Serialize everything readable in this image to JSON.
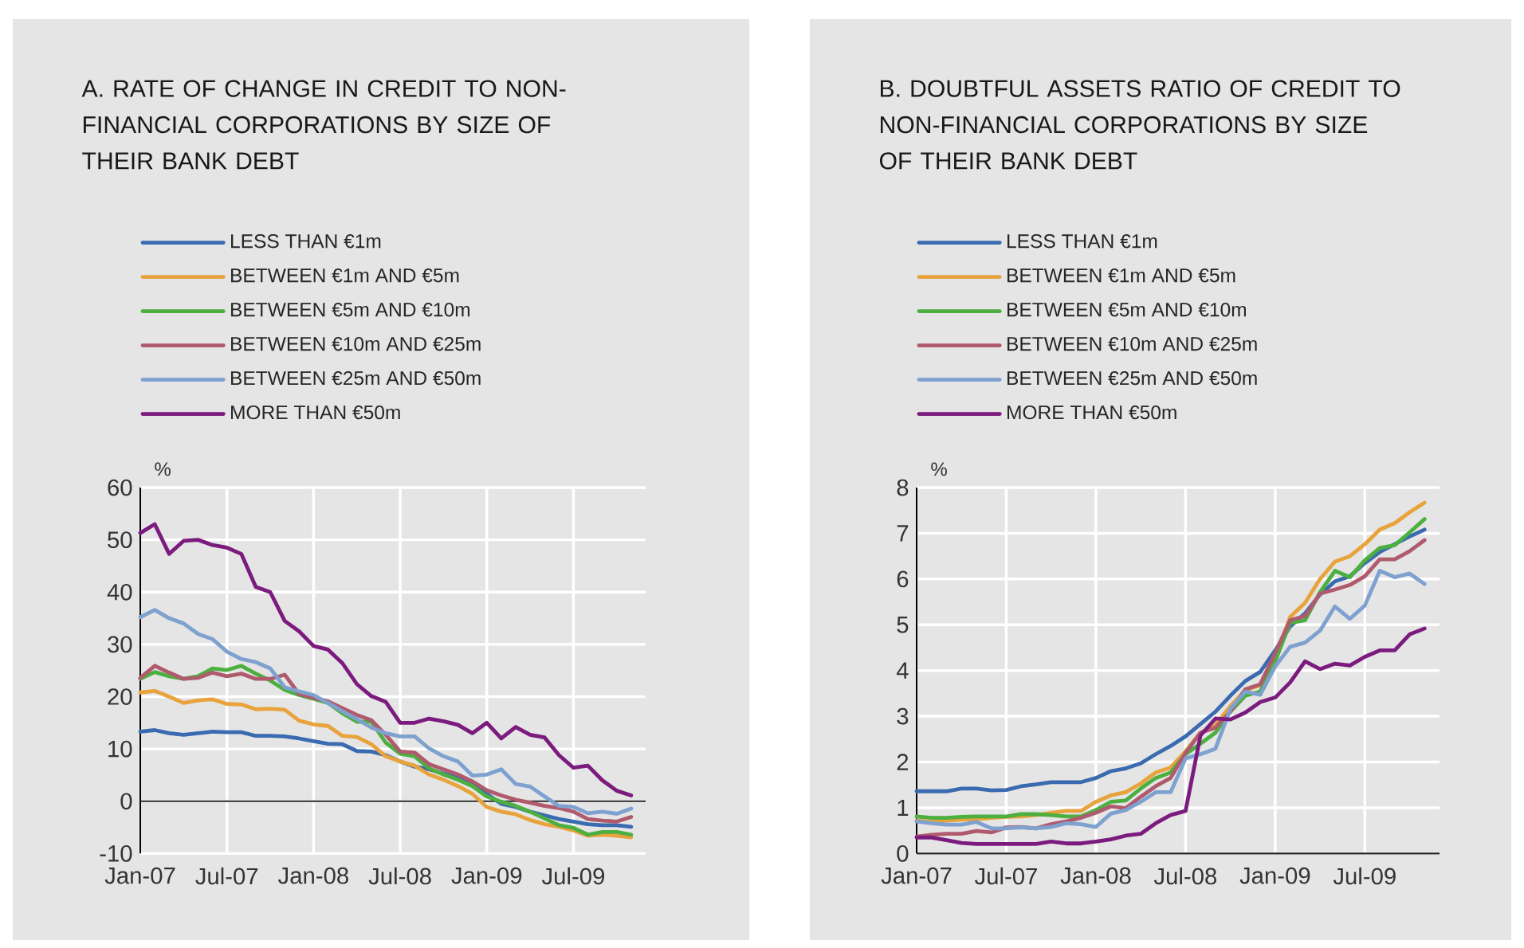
{
  "chart_data": [
    {
      "type": "line",
      "title": "A. RATE OF CHANGE IN CREDIT TO NON-FINANCIAL CORPORATIONS BY SIZE OF THEIR BANK DEBT",
      "ylabel": "%",
      "x": [
        "2007-01",
        "2007-02",
        "2007-03",
        "2007-04",
        "2007-05",
        "2007-06",
        "2007-07",
        "2007-08",
        "2007-09",
        "2007-10",
        "2007-11",
        "2007-12",
        "2008-01",
        "2008-02",
        "2008-03",
        "2008-04",
        "2008-05",
        "2008-06",
        "2008-07",
        "2008-08",
        "2008-09",
        "2008-10",
        "2008-11",
        "2008-12",
        "2009-01",
        "2009-02",
        "2009-03",
        "2009-04",
        "2009-05",
        "2009-06",
        "2009-07",
        "2009-08",
        "2009-09",
        "2009-10",
        "2009-11"
      ],
      "xlim": [
        "2007-01",
        "2009-12"
      ],
      "xticks": [
        {
          "value": "2007-01",
          "label": "Jan-07"
        },
        {
          "value": "2007-07",
          "label": "Jul-07"
        },
        {
          "value": "2008-01",
          "label": "Jan-08"
        },
        {
          "value": "2008-07",
          "label": "Jul-08"
        },
        {
          "value": "2009-01",
          "label": "Jan-09"
        },
        {
          "value": "2009-07",
          "label": "Jul-09"
        }
      ],
      "ylim": [
        -10,
        60
      ],
      "yticks": [
        -10,
        0,
        10,
        20,
        30,
        40,
        50,
        60
      ],
      "grid": true,
      "legend": "top left",
      "series": [
        {
          "name": "LESS THAN €1m",
          "color": "#3a6bb0",
          "values": [
            13.3,
            13.6,
            13,
            12.7,
            13,
            13.3,
            13.2,
            13.2,
            12.5,
            12.5,
            12.4,
            12,
            11.5,
            11,
            10.9,
            9.6,
            9.5,
            8.8,
            7.6,
            6.6,
            6.1,
            5.3,
            4.4,
            3.5,
            1.4,
            -0.5,
            -1.1,
            -2,
            -2.7,
            -3.4,
            -3.9,
            -4.4,
            -4.6,
            -4.6,
            -4.9
          ]
        },
        {
          "name": "BETWEEN €1m AND €5m",
          "color": "#e8a33c",
          "values": [
            20.8,
            21.1,
            20,
            18.8,
            19.3,
            19.5,
            18.6,
            18.5,
            17.6,
            17.7,
            17.5,
            15.4,
            14.7,
            14.4,
            12.5,
            12.3,
            10.9,
            8.6,
            7.6,
            6.8,
            5.1,
            4.1,
            2.9,
            1.4,
            -1.1,
            -2,
            -2.5,
            -3.6,
            -4.4,
            -4.9,
            -5.6,
            -6.6,
            -6.4,
            -6.6,
            -6.9
          ]
        },
        {
          "name": "BETWEEN €5m AND €10m",
          "color": "#4caf3f",
          "values": [
            23.4,
            24.7,
            23.9,
            23.4,
            23.9,
            25.4,
            25.1,
            25.9,
            24.4,
            23.1,
            21.3,
            20.3,
            19.6,
            18.8,
            16.8,
            15.2,
            15.2,
            11.2,
            9.1,
            8.6,
            6.3,
            5.1,
            4.1,
            2.9,
            0.9,
            -0.1,
            -0.9,
            -2,
            -3.3,
            -4.6,
            -5.1,
            -6.4,
            -5.9,
            -5.9,
            -6.4
          ]
        },
        {
          "name": "BETWEEN €10m AND €25m",
          "color": "#b05a6e",
          "values": [
            23.6,
            25.9,
            24.6,
            23.4,
            23.6,
            24.6,
            23.9,
            24.4,
            23.4,
            23.4,
            24.2,
            20.5,
            19.8,
            19.1,
            17.8,
            16.5,
            15.5,
            12.7,
            9.5,
            9.3,
            7.1,
            6.1,
            5.1,
            3.8,
            2.1,
            1.1,
            0.3,
            -0.3,
            -0.9,
            -1.3,
            -2,
            -3.4,
            -3.7,
            -3.9,
            -3
          ]
        },
        {
          "name": "BETWEEN €25m AND €50m",
          "color": "#7ea1d0",
          "values": [
            35.2,
            36.6,
            35,
            34,
            32,
            31,
            28.6,
            27.2,
            26.6,
            25.4,
            21.8,
            21,
            20.3,
            18.8,
            17.2,
            15.7,
            14.1,
            13,
            12.4,
            12.4,
            10.1,
            8.6,
            7.6,
            4.9,
            5.1,
            6.1,
            3.3,
            2.8,
            0.9,
            -0.9,
            -1.1,
            -2.3,
            -2,
            -2.4,
            -1.4
          ]
        },
        {
          "name": "MORE THAN €50m",
          "color": "#7b1b7e",
          "values": [
            51.3,
            53,
            47.3,
            49.8,
            50,
            49,
            48.5,
            47.3,
            41,
            40,
            34.5,
            32.5,
            29.7,
            29,
            26.4,
            22.4,
            20.1,
            19,
            15,
            15,
            15.8,
            15.3,
            14.6,
            13,
            15,
            12,
            14.2,
            12.7,
            12.2,
            8.8,
            6.4,
            6.8,
            4,
            2,
            1.1
          ]
        }
      ]
    },
    {
      "type": "line",
      "title": "B. DOUBTFUL ASSETS RATIO OF CREDIT TO NON-FINANCIAL CORPORATIONS BY SIZE OF THEIR BANK DEBT",
      "ylabel": "%",
      "x": [
        "2007-01",
        "2007-02",
        "2007-03",
        "2007-04",
        "2007-05",
        "2007-06",
        "2007-07",
        "2007-08",
        "2007-09",
        "2007-10",
        "2007-11",
        "2007-12",
        "2008-01",
        "2008-02",
        "2008-03",
        "2008-04",
        "2008-05",
        "2008-06",
        "2008-07",
        "2008-08",
        "2008-09",
        "2008-10",
        "2008-11",
        "2008-12",
        "2009-01",
        "2009-02",
        "2009-03",
        "2009-04",
        "2009-05",
        "2009-06",
        "2009-07",
        "2009-08",
        "2009-09",
        "2009-10",
        "2009-11"
      ],
      "xlim": [
        "2007-01",
        "2009-12"
      ],
      "xticks": [
        {
          "value": "2007-01",
          "label": "Jan-07"
        },
        {
          "value": "2007-07",
          "label": "Jul-07"
        },
        {
          "value": "2008-01",
          "label": "Jan-08"
        },
        {
          "value": "2008-07",
          "label": "Jul-08"
        },
        {
          "value": "2009-01",
          "label": "Jan-09"
        },
        {
          "value": "2009-07",
          "label": "Jul-09"
        }
      ],
      "ylim": [
        0,
        8
      ],
      "yticks": [
        0,
        1,
        2,
        3,
        4,
        5,
        6,
        7,
        8
      ],
      "grid": true,
      "legend": "top left",
      "series": [
        {
          "name": "LESS THAN €1m",
          "color": "#3a6bb0",
          "values": [
            1.36,
            1.36,
            1.36,
            1.42,
            1.42,
            1.38,
            1.39,
            1.47,
            1.51,
            1.56,
            1.56,
            1.56,
            1.65,
            1.8,
            1.86,
            1.97,
            2.17,
            2.35,
            2.56,
            2.83,
            3.1,
            3.45,
            3.77,
            3.97,
            4.44,
            4.96,
            5.25,
            5.66,
            5.95,
            6.06,
            6.35,
            6.59,
            6.76,
            6.93,
            7.08
          ]
        },
        {
          "name": "BETWEEN €1m AND €5m",
          "color": "#e8a33c",
          "values": [
            0.72,
            0.69,
            0.72,
            0.74,
            0.75,
            0.78,
            0.8,
            0.81,
            0.84,
            0.89,
            0.93,
            0.93,
            1.13,
            1.27,
            1.34,
            1.53,
            1.77,
            1.88,
            2.23,
            2.64,
            2.81,
            3.22,
            3.57,
            3.68,
            4.26,
            5.17,
            5.48,
            6,
            6.38,
            6.5,
            6.76,
            7.08,
            7.22,
            7.46,
            7.67
          ]
        },
        {
          "name": "BETWEEN €5m AND €10m",
          "color": "#4caf3f",
          "values": [
            0.81,
            0.78,
            0.78,
            0.8,
            0.81,
            0.81,
            0.81,
            0.86,
            0.86,
            0.84,
            0.81,
            0.81,
            0.95,
            1.13,
            1.16,
            1.42,
            1.65,
            1.77,
            2.17,
            2.4,
            2.64,
            3.1,
            3.45,
            3.54,
            4.2,
            5.04,
            5.1,
            5.71,
            6.18,
            6.04,
            6.41,
            6.68,
            6.74,
            7.02,
            7.31
          ]
        },
        {
          "name": "BETWEEN €10m AND €25m",
          "color": "#b05a6e",
          "values": [
            0.37,
            0.41,
            0.43,
            0.43,
            0.49,
            0.46,
            0.57,
            0.58,
            0.55,
            0.64,
            0.7,
            0.78,
            0.89,
            1.03,
            0.99,
            1.24,
            1.47,
            1.65,
            2.2,
            2.64,
            2.75,
            3.1,
            3.59,
            3.7,
            4.38,
            5.1,
            5.19,
            5.68,
            5.77,
            5.87,
            6.06,
            6.43,
            6.43,
            6.61,
            6.85
          ]
        },
        {
          "name": "BETWEEN €25m AND €50m",
          "color": "#7ea1d0",
          "values": [
            0.7,
            0.66,
            0.63,
            0.63,
            0.69,
            0.55,
            0.55,
            0.57,
            0.55,
            0.58,
            0.66,
            0.64,
            0.58,
            0.87,
            0.95,
            1.13,
            1.34,
            1.34,
            2.08,
            2.17,
            2.29,
            3.16,
            3.54,
            3.47,
            4.09,
            4.52,
            4.61,
            4.87,
            5.4,
            5.13,
            5.42,
            6.18,
            6.04,
            6.12,
            5.89
          ]
        },
        {
          "name": "MORE THAN €50m",
          "color": "#7b1b7e",
          "values": [
            0.35,
            0.35,
            0.29,
            0.23,
            0.21,
            0.21,
            0.21,
            0.21,
            0.21,
            0.26,
            0.22,
            0.22,
            0.26,
            0.31,
            0.39,
            0.43,
            0.66,
            0.84,
            0.93,
            2.58,
            2.95,
            2.93,
            3.08,
            3.31,
            3.41,
            3.74,
            4.2,
            4.03,
            4.15,
            4.11,
            4.3,
            4.44,
            4.44,
            4.79,
            4.92
          ]
        }
      ]
    }
  ]
}
